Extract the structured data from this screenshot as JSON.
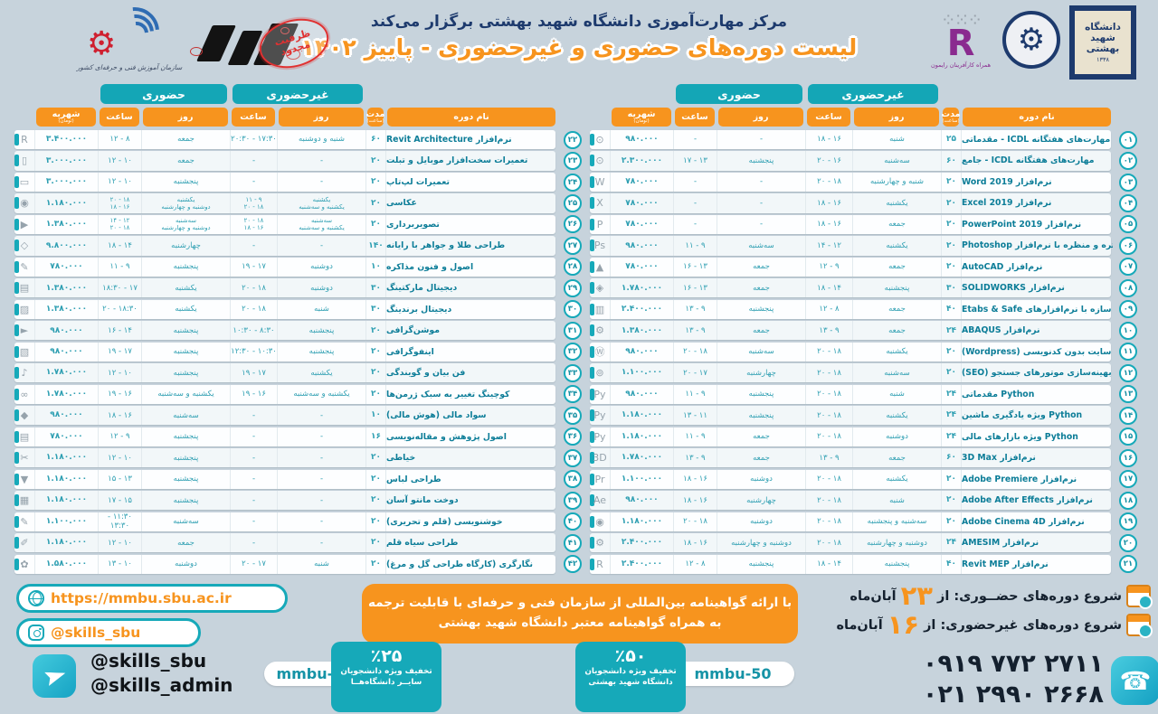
{
  "header": {
    "line1": "مرکز مهارت‌آموزی دانشگاه شهید بهشتی برگزار می‌کند",
    "line2": "لیست دوره‌های حضوری و غیرحضوری - پاییز ۱۴۰۲",
    "stamp": "ظرفیت مجدود",
    "tvto_caption": "سازمان آموزش فنی و حرفه‌ای کشور",
    "raymon_caption": "همراه کارآفرینان رایمون",
    "sbu_logo_line1": "دانشگاه",
    "sbu_logo_line2": "شهید",
    "sbu_logo_line3": "بهشتی",
    "sbu_logo_year": "۱۳۳۸"
  },
  "table_labels": {
    "tab_inperson": "حضوری",
    "tab_online": "غیرحضوری",
    "col_tuition": "شهریه",
    "col_tuition_sub": "(تومان)",
    "col_hours": "ساعت",
    "col_day": "روز",
    "col_duration": "مدت",
    "col_duration_sub": "(ساعت)",
    "col_course": "نام دوره"
  },
  "courses_right": [
    {
      "no": "۰۱",
      "icon": "⊙",
      "name": "مهارت‌های هفتگانه ICDL - مقدماتی",
      "tuition": "۹۸۰.۰۰۰",
      "h1": "-",
      "d1": "-",
      "h2": "۱۶ - ۱۸",
      "d2": "شنبه",
      "dur": "۲۵"
    },
    {
      "no": "۰۲",
      "icon": "⊙",
      "name": "مهارت‌های هفتگانه ICDL - جامع",
      "tuition": "۲.۳۰۰.۰۰۰",
      "h1": "۱۳ - ۱۷",
      "d1": "پنجشنبه",
      "h2": "۱۶ - ۲۰",
      "d2": "سه‌شنبه",
      "dur": "۶۰"
    },
    {
      "no": "۰۳",
      "icon": "W",
      "name": "نرم‌افزار Word 2019",
      "tuition": "۷۸۰.۰۰۰",
      "h1": "-",
      "d1": "-",
      "h2": "۱۸ - ۲۰",
      "d2": "شنبه و چهارشنبه",
      "dur": "۲۰"
    },
    {
      "no": "۰۴",
      "icon": "X",
      "name": "نرم‌افزار Excel 2019",
      "tuition": "۷۸۰.۰۰۰",
      "h1": "-",
      "d1": "-",
      "h2": "۱۶ - ۱۸",
      "d2": "یکشنبه",
      "dur": "۲۰"
    },
    {
      "no": "۰۵",
      "icon": "P",
      "name": "نرم‌افزار PowerPoint 2019",
      "tuition": "۷۸۰.۰۰۰",
      "h1": "-",
      "d1": "-",
      "h2": "۱۶ - ۱۸",
      "d2": "جمعه",
      "dur": "۲۰"
    },
    {
      "no": "۰۶",
      "icon": "Ps",
      "name": "ادیت پرتره و منظره با نرم‌افزار Photoshop",
      "tuition": "۹۸۰.۰۰۰",
      "h1": "۹ - ۱۱",
      "d1": "سه‌شنبه",
      "h2": "۱۲ - ۱۴",
      "d2": "یکشنبه",
      "dur": "۲۰"
    },
    {
      "no": "۰۷",
      "icon": "▲",
      "name": "نرم‌افزار AutoCAD",
      "tuition": "۷۸۰.۰۰۰",
      "h1": "۱۳ - ۱۶",
      "d1": "جمعه",
      "h2": "۹ - ۱۲",
      "d2": "جمعه",
      "dur": "۲۰"
    },
    {
      "no": "۰۸",
      "icon": "◈",
      "name": "نرم‌افزار SOLIDWORKS",
      "tuition": "۱.۷۸۰.۰۰۰",
      "h1": "۱۳ - ۱۶",
      "d1": "جمعه",
      "h2": "۱۴ - ۱۸",
      "d2": "پنجشنبه",
      "dur": "۳۰"
    },
    {
      "no": "۰۹",
      "icon": "▥",
      "name": "طراحی سازه با نرم‌افزارهای Etabs & Safe",
      "tuition": "۲.۴۰۰.۰۰۰",
      "h1": "۹ - ۱۳",
      "d1": "پنجشنبه",
      "h2": "۸ - ۱۲",
      "d2": "جمعه",
      "dur": "۴۰"
    },
    {
      "no": "۱۰",
      "icon": "⚙",
      "name": "نرم‌افزار ABAQUS",
      "tuition": "۱.۳۸۰.۰۰۰",
      "h1": "۹ - ۱۳",
      "d1": "جمعه",
      "h2": "۹ - ۱۳",
      "d2": "جمعه",
      "dur": "۲۴"
    },
    {
      "no": "۱۱",
      "icon": "Ⓦ",
      "name": "طراحی سایت بدون کدنویسی (Wordpress)",
      "tuition": "۹۸۰.۰۰۰",
      "h1": "۱۸ - ۲۰",
      "d1": "سه‌شنبه",
      "h2": "۱۸ - ۲۰",
      "d2": "یکشنبه",
      "dur": "۲۰"
    },
    {
      "no": "۱۲",
      "icon": "⊚",
      "name": "بهینه‌سازی موتورهای جستجو (SEO)",
      "tuition": "۱.۱۰۰.۰۰۰",
      "h1": "۱۷ - ۲۰",
      "d1": "چهارشنبه",
      "h2": "۱۸ - ۲۰",
      "d2": "سه‌شنبه",
      "dur": "۲۰"
    },
    {
      "no": "۱۳",
      "icon": "Py",
      "name": "Python مقدماتی",
      "tuition": "۹۸۰.۰۰۰",
      "h1": "۹ - ۱۱",
      "d1": "پنجشنبه",
      "h2": "۱۸ - ۲۰",
      "d2": "شنبه",
      "dur": "۲۴"
    },
    {
      "no": "۱۴",
      "icon": "Py",
      "name": "Python ویژه یادگیری ماشین",
      "tuition": "۱.۱۸۰.۰۰۰",
      "h1": "۱۱ - ۱۳",
      "d1": "پنجشنبه",
      "h2": "۱۸ - ۲۰",
      "d2": "یکشنبه",
      "dur": "۲۴"
    },
    {
      "no": "۱۵",
      "icon": "Py",
      "name": "Python ویژه بازارهای مالی",
      "tuition": "۱.۱۸۰.۰۰۰",
      "h1": "۹ - ۱۱",
      "d1": "جمعه",
      "h2": "۱۸ - ۲۰",
      "d2": "دوشنبه",
      "dur": "۲۴"
    },
    {
      "no": "۱۶",
      "icon": "3D",
      "name": "نرم‌افزار 3D Max",
      "tuition": "۱.۷۸۰.۰۰۰",
      "h1": "۹ - ۱۳",
      "d1": "جمعه",
      "h2": "۹ - ۱۳",
      "d2": "جمعه",
      "dur": "۶۰"
    },
    {
      "no": "۱۷",
      "icon": "Pr",
      "name": "نرم‌افزار Adobe Premiere",
      "tuition": "۱.۱۰۰.۰۰۰",
      "h1": "۱۶ - ۱۸",
      "d1": "دوشنبه",
      "h2": "۱۸ - ۲۰",
      "d2": "یکشنبه",
      "dur": "۲۰"
    },
    {
      "no": "۱۸",
      "icon": "Ae",
      "name": "نرم‌افزار Adobe After Effects",
      "tuition": "۹۸۰.۰۰۰",
      "h1": "۱۶ - ۱۸",
      "d1": "چهارشنبه",
      "h2": "۱۸ - ۲۰",
      "d2": "شنبه",
      "dur": "۲۰"
    },
    {
      "no": "۱۹",
      "icon": "◉",
      "name": "نرم‌افزار Adobe Cinema 4D",
      "tuition": "۱.۱۸۰.۰۰۰",
      "h1": "۱۸ - ۲۰",
      "d1": "دوشنبه",
      "h2": "۱۸ - ۲۰",
      "d2": "سه‌شنبه و پنجشنبه",
      "dur": "۲۰"
    },
    {
      "no": "۲۰",
      "icon": "⚙",
      "name": "نرم‌افزار AMESIM",
      "tuition": "۲.۴۰۰.۰۰۰",
      "h1": "۱۶ - ۱۸",
      "d1": "دوشنبه و چهارشنبه",
      "h2": "۱۸ - ۲۰",
      "d2": "دوشنبه و چهارشنبه",
      "dur": "۲۴"
    },
    {
      "no": "۲۱",
      "icon": "R",
      "name": "نرم‌افزار Revit MEP",
      "tuition": "۲.۴۰۰.۰۰۰",
      "h1": "۸ - ۱۲",
      "d1": "پنجشنبه",
      "h2": "۱۴ - ۱۸",
      "d2": "پنجشنبه",
      "dur": "۴۰"
    }
  ],
  "courses_left": [
    {
      "no": "۲۲",
      "icon": "R",
      "name": "نرم‌افزار Revit Architecture",
      "tuition": "۳.۴۰۰.۰۰۰",
      "h1": "۸ - ۱۲",
      "d1": "جمعه",
      "h2": "۱۷:۳۰ - ۲۰:۳۰",
      "d2": "شنبه و دوشنبه",
      "dur": "۶۰"
    },
    {
      "no": "۲۳",
      "icon": "▯",
      "name": "تعمیرات سخت‌افزار موبایل و تبلت",
      "tuition": "۳.۰۰۰.۰۰۰",
      "h1": "۱۰ - ۱۲",
      "d1": "جمعه",
      "h2": "-",
      "d2": "-",
      "dur": "۲۰"
    },
    {
      "no": "۲۴",
      "icon": "▭",
      "name": "تعمیرات لپ‌تاپ",
      "tuition": "۳.۰۰۰.۰۰۰",
      "h1": "۱۰ - ۱۲",
      "d1": "پنجشنبه",
      "h2": "-",
      "d2": "-",
      "dur": "۲۰"
    },
    {
      "no": "۲۵",
      "icon": "◉",
      "name": "عکاسی",
      "tuition": "۱.۱۸۰.۰۰۰",
      "h1": "۱۸ - ۲۰\n۱۶ - ۱۸",
      "d1": "یکشنبه\nدوشنبه و چهارشنبه",
      "h2": "۹ - ۱۱\n۱۸ - ۲۰",
      "d2": "یکشنبه\nیکشنبه و سه‌شنبه",
      "dur": "۲۰"
    },
    {
      "no": "۲۶",
      "icon": "▶",
      "name": "تصویربرداری",
      "tuition": "۱.۳۸۰.۰۰۰",
      "h1": "۱۲ - ۱۴\n۱۸ - ۲۰",
      "d1": "سه‌شنبه\nدوشنبه و چهارشنبه",
      "h2": "۱۸ - ۲۰\n۱۶ - ۱۸",
      "d2": "سه‌شنبه\nیکشنبه و سه‌شنبه",
      "dur": "۲۰"
    },
    {
      "no": "۲۷",
      "icon": "◇",
      "name": "طراحی طلا و جواهر با رایانه",
      "tuition": "۹.۸۰۰.۰۰۰",
      "h1": "۱۴ - ۱۸",
      "d1": "چهارشنبه",
      "h2": "-",
      "d2": "-",
      "dur": "۱۴۰"
    },
    {
      "no": "۲۸",
      "icon": "✎",
      "name": "اصول و فنون مذاکره",
      "tuition": "۷۸۰.۰۰۰",
      "h1": "۹ - ۱۱",
      "d1": "پنجشنبه",
      "h2": "۱۷ - ۱۹",
      "d2": "دوشنبه",
      "dur": "۱۰"
    },
    {
      "no": "۲۹",
      "icon": "▤",
      "name": "دیجیتال مارکتینگ",
      "tuition": "۱.۳۸۰.۰۰۰",
      "h1": "۱۷ - ۱۸:۳۰",
      "d1": "یکشنبه",
      "h2": "۱۸ - ۲۰",
      "d2": "دوشنبه",
      "dur": "۳۰"
    },
    {
      "no": "۳۰",
      "icon": "▨",
      "name": "دیجیتال برندینگ",
      "tuition": "۱.۳۸۰.۰۰۰",
      "h1": "۱۸:۳۰ - ۲۰",
      "d1": "یکشنبه",
      "h2": "۱۸ - ۲۰",
      "d2": "شنبه",
      "dur": "۳۰"
    },
    {
      "no": "۳۱",
      "icon": "►",
      "name": "موشن‌گرافی",
      "tuition": "۹۸۰.۰۰۰",
      "h1": "۱۴ - ۱۶",
      "d1": "پنجشنبه",
      "h2": "۸:۳۰ - ۱۰:۳۰",
      "d2": "پنجشنبه",
      "dur": "۲۰"
    },
    {
      "no": "۳۲",
      "icon": "▧",
      "name": "اینفوگرافی",
      "tuition": "۹۸۰.۰۰۰",
      "h1": "۱۷ - ۱۹",
      "d1": "پنجشنبه",
      "h2": "۱۰:۳۰ - ۱۲:۳۰",
      "d2": "پنجشنبه",
      "dur": "۲۰"
    },
    {
      "no": "۳۳",
      "icon": "♪",
      "name": "فن بیان و گویندگی",
      "tuition": "۱.۷۸۰.۰۰۰",
      "h1": "۱۰ - ۱۲",
      "d1": "پنجشنبه",
      "h2": "۱۷ - ۱۹",
      "d2": "یکشنبه",
      "dur": "۲۰"
    },
    {
      "no": "۳۴",
      "icon": "∞",
      "name": "کوچینگ تغییر به سبک ژرمن‌ها",
      "tuition": "۱.۷۸۰.۰۰۰",
      "h1": "۱۶ - ۱۹",
      "d1": "یکشنبه و سه‌شنبه",
      "h2": "۱۶ - ۱۹",
      "d2": "یکشنبه و سه‌شنبه",
      "dur": "۲۰"
    },
    {
      "no": "۳۵",
      "icon": "◆",
      "name": "سواد مالی (هوش مالی)",
      "tuition": "۹۸۰.۰۰۰",
      "h1": "۱۶ - ۱۸",
      "d1": "سه‌شنبه",
      "h2": "-",
      "d2": "-",
      "dur": "۱۰"
    },
    {
      "no": "۳۶",
      "icon": "▤",
      "name": "اصول پژوهش و مقاله‌نویسی",
      "tuition": "۷۸۰.۰۰۰",
      "h1": "۹ - ۱۲",
      "d1": "پنجشنبه",
      "h2": "-",
      "d2": "-",
      "dur": "۱۶"
    },
    {
      "no": "۳۷",
      "icon": "✂",
      "name": "خیاطی",
      "tuition": "۱.۱۸۰.۰۰۰",
      "h1": "۱۰ - ۱۲",
      "d1": "پنجشنبه",
      "h2": "-",
      "d2": "-",
      "dur": "۲۰"
    },
    {
      "no": "۳۸",
      "icon": "▼",
      "name": "طراحی لباس",
      "tuition": "۱.۱۸۰.۰۰۰",
      "h1": "۱۳ - ۱۵",
      "d1": "پنجشنبه",
      "h2": "-",
      "d2": "-",
      "dur": "۲۰"
    },
    {
      "no": "۳۹",
      "icon": "▦",
      "name": "دوخت مانتو آسان",
      "tuition": "۱.۱۸۰.۰۰۰",
      "h1": "۱۵ - ۱۷",
      "d1": "پنجشنبه",
      "h2": "-",
      "d2": "-",
      "dur": "۲۰"
    },
    {
      "no": "۴۰",
      "icon": "✎",
      "name": "خوشنویسی (قلم و تحریری)",
      "tuition": "۱.۱۰۰.۰۰۰",
      "h1": "۱۱:۳۰ - ۱۳:۳۰",
      "d1": "سه‌شنبه",
      "h2": "-",
      "d2": "-",
      "dur": "۲۰"
    },
    {
      "no": "۴۱",
      "icon": "✐",
      "name": "طراحی سیاه قلم",
      "tuition": "۱.۱۸۰.۰۰۰",
      "h1": "۱۰ - ۱۲",
      "d1": "جمعه",
      "h2": "-",
      "d2": "-",
      "dur": "۲۰"
    },
    {
      "no": "۴۲",
      "icon": "✿",
      "name": "نگارگری (کارگاه طراحی گل و مرغ)",
      "tuition": "۱.۵۸۰.۰۰۰",
      "h1": "۱۰ - ۱۳",
      "d1": "دوشنبه",
      "h2": "۱۷ - ۲۰",
      "d2": "شنبه",
      "dur": "۲۰"
    }
  ],
  "footer": {
    "website": "https://mmbu.sbu.ac.ir",
    "instagram": "@skills_sbu",
    "telegram1": "@skills_sbu",
    "telegram2": "@skills_admin",
    "cert_line1": "با ارائه گواهینامه بین‌المللی از سازمان فنی و حرفه‌ای با قابلیت ترجمه",
    "cert_line2": "به همراه گواهینامه معتبر دانشگاه شهید بهشتی",
    "discount25": {
      "percent": "٪۲۵",
      "line1": "تخفیف ویژه دانشجویان",
      "line2": "سایــر دانشگاه‌هــا",
      "code": "mmbu-25"
    },
    "discount50": {
      "percent": "٪۵۰",
      "line1": "تخفیف ویژه دانشجویان",
      "line2": "دانشگاه شهید بهشتی",
      "code": "mmbu-50"
    },
    "start_inperson_label": "شروع دوره‌های حضــوری: از",
    "start_inperson_day": "۲۳",
    "start_online_label": "شروع دوره‌های غیرحضوری: از",
    "start_online_day": "۱۶",
    "month": "آبان‌ماه",
    "phone1": "۰۹۱۹ ۷۷۲ ۲۷۱۱",
    "phone2": "۰۲۱ ۲۹۹۰ ۲۶۶۸"
  },
  "colors": {
    "teal": "#16a9b9",
    "orange": "#f7941e",
    "navy": "#1d3a6d",
    "background": "#c7d3dc",
    "red_stamp": "#e03131"
  }
}
